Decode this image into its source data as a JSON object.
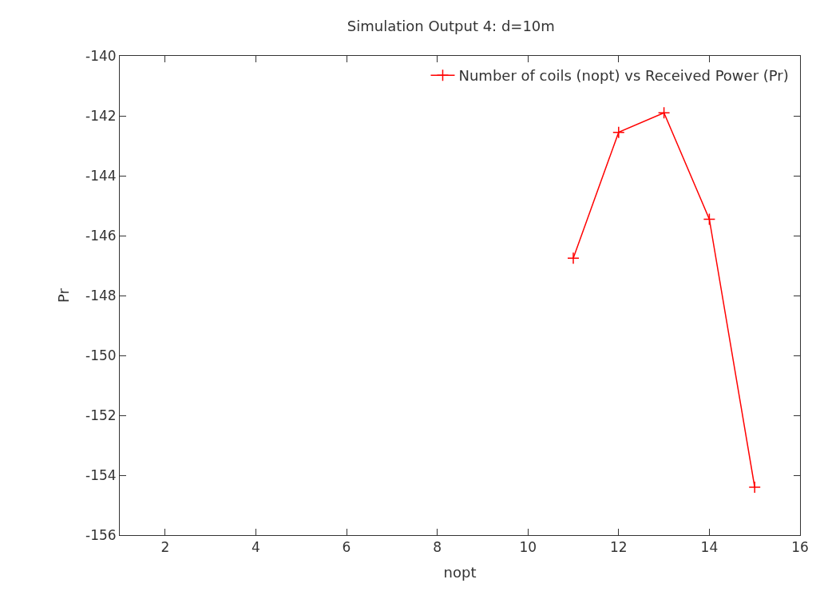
{
  "chart_data": {
    "type": "line",
    "title": "Simulation Output 4: d=10m",
    "xlabel": "nopt",
    "ylabel": "Pr",
    "x": [
      11,
      12,
      13,
      14,
      15
    ],
    "series": [
      {
        "name": "Number of coils (nopt) vs Received Power (Pr)",
        "color": "#ff0000",
        "values": [
          -146.75,
          -142.55,
          -141.9,
          -145.45,
          -154.4
        ]
      }
    ],
    "xlim": [
      1,
      16
    ],
    "xticks": [
      2,
      4,
      6,
      8,
      10,
      12,
      14,
      16
    ],
    "ylim": [
      -156,
      -140
    ],
    "yticks": [
      -156,
      -154,
      -152,
      -150,
      -148,
      -146,
      -144,
      -142,
      -140
    ],
    "legend": "top right",
    "marker": "cross",
    "line_style": "solid"
  }
}
